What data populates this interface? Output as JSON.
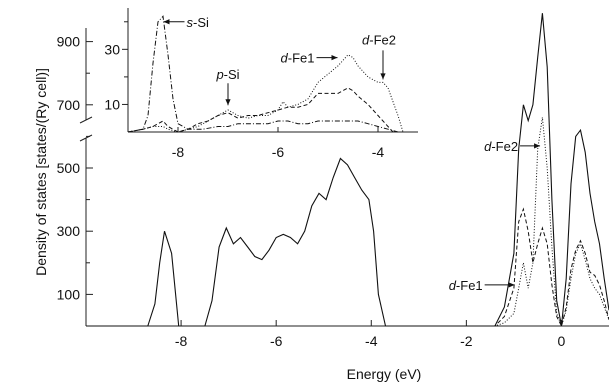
{
  "chart_data": {
    "type": "line",
    "title": "",
    "xlabel": "Energy (eV)",
    "ylabel": "Density of states [states/(Ry cell)]",
    "xlim": [
      -10,
      1
    ],
    "ylim": [
      0,
      1000
    ],
    "xticks": [
      -8,
      -6,
      -4,
      -2,
      0
    ],
    "yticks": [
      100,
      300,
      500,
      700,
      900
    ],
    "grid": false,
    "legend": "none",
    "series": [
      {
        "style": "solid",
        "x": [
          -10,
          -8.7,
          -8.55,
          -8.45,
          -8.35,
          -8.2,
          -8.05,
          -7.5,
          -7.35,
          -7.2,
          -7.05,
          -6.9,
          -6.75,
          -6.6,
          -6.45,
          -6.3,
          -6.15,
          -6.0,
          -5.85,
          -5.7,
          -5.55,
          -5.4,
          -5.25,
          -5.1,
          -4.95,
          -4.8,
          -4.65,
          -4.5,
          -4.35,
          -4.2,
          -4.05,
          -3.95,
          -3.85,
          -3.7,
          -2.0,
          -1.4,
          -1.2,
          -1.0,
          -0.9,
          -0.8,
          -0.7,
          -0.6,
          -0.5,
          -0.4,
          -0.3,
          -0.2,
          -0.1,
          0.0,
          0.1,
          0.2,
          0.3,
          0.4,
          0.5,
          0.6,
          0.7,
          0.8,
          0.9,
          1.0
        ],
        "y": [
          0,
          0,
          70,
          200,
          300,
          230,
          0,
          0,
          80,
          250,
          310,
          260,
          280,
          250,
          220,
          210,
          240,
          280,
          290,
          280,
          260,
          300,
          380,
          420,
          400,
          470,
          530,
          510,
          470,
          430,
          400,
          300,
          100,
          0,
          0,
          0,
          60,
          230,
          560,
          700,
          650,
          700,
          850,
          990,
          820,
          400,
          80,
          0,
          150,
          450,
          600,
          620,
          550,
          420,
          330,
          260,
          150,
          50
        ]
      },
      {
        "style": "dashed",
        "x": [
          -2.0,
          -1.4,
          -1.2,
          -1.0,
          -0.9,
          -0.8,
          -0.7,
          -0.6,
          -0.5,
          -0.4,
          -0.3,
          -0.2,
          -0.1,
          0.0,
          0.1,
          0.2,
          0.3,
          0.4,
          0.5,
          0.6,
          0.7,
          0.8,
          0.9,
          1.0
        ],
        "y": [
          0,
          0,
          30,
          120,
          330,
          370,
          300,
          200,
          260,
          310,
          260,
          130,
          30,
          0,
          60,
          180,
          240,
          270,
          230,
          170,
          160,
          130,
          80,
          20
        ]
      },
      {
        "style": "dotted",
        "x": [
          -2.0,
          -1.4,
          -1.2,
          -1.0,
          -0.9,
          -0.8,
          -0.7,
          -0.6,
          -0.5,
          -0.4,
          -0.3,
          -0.2,
          -0.1,
          0.0,
          0.1,
          0.2,
          0.3,
          0.4,
          0.5,
          0.6,
          0.7,
          0.8,
          0.9,
          1.0
        ],
        "y": [
          0,
          0,
          10,
          40,
          120,
          200,
          120,
          200,
          560,
          660,
          500,
          250,
          40,
          0,
          50,
          150,
          230,
          260,
          210,
          150,
          120,
          100,
          60,
          20
        ]
      }
    ],
    "annotations": [
      {
        "prefix": "d",
        "suffix": "-Fe2",
        "x": -0.45,
        "y": 570
      },
      {
        "prefix": "d",
        "suffix": "-Fe1",
        "x": -0.9,
        "y": 130
      }
    ],
    "inset": {
      "type": "line",
      "xlim": [
        -9,
        -3.2
      ],
      "ylim": [
        0,
        45
      ],
      "xticks": [
        -8,
        -6,
        -4
      ],
      "yticks": [
        10,
        30
      ],
      "series": [
        {
          "style": "dashdot",
          "x": [
            -9,
            -8.7,
            -8.6,
            -8.5,
            -8.4,
            -8.3,
            -8.2,
            -8.1,
            -8.0,
            -7.8,
            -7.5,
            -7.2,
            -7.0,
            -6.8,
            -6.6,
            -6.4,
            -6.2,
            -6.0,
            -5.8,
            -5.6,
            -5.4,
            -5.2,
            -5.0,
            -4.8,
            -4.6,
            -4.4,
            -4.2,
            -4.0,
            -3.8,
            -3.6
          ],
          "y": [
            0,
            1,
            6,
            25,
            40,
            42,
            28,
            12,
            3,
            1,
            1,
            2,
            2,
            3,
            3,
            3,
            3,
            4,
            4,
            3,
            3,
            4,
            4,
            4,
            4,
            4,
            3,
            2,
            1,
            0
          ]
        },
        {
          "style": "dashed",
          "x": [
            -9,
            -8.7,
            -8.5,
            -8.4,
            -8.3,
            -8.2,
            -8.0,
            -7.8,
            -7.6,
            -7.4,
            -7.2,
            -7.0,
            -6.9,
            -6.8,
            -6.6,
            -6.4,
            -6.2,
            -6.0,
            -5.8,
            -5.6,
            -5.4,
            -5.2,
            -5.0,
            -4.8,
            -4.6,
            -4.5,
            -4.4,
            -4.2,
            -4.0,
            -3.8,
            -3.7
          ],
          "y": [
            0,
            1,
            2,
            3,
            4,
            2,
            0,
            1,
            3,
            4,
            6,
            7,
            6,
            5,
            6,
            6,
            7,
            8,
            9,
            9,
            10,
            14,
            14,
            14,
            16,
            15,
            13,
            10,
            6,
            2,
            0
          ]
        },
        {
          "style": "dotted",
          "x": [
            -9,
            -8.7,
            -8.5,
            -8.4,
            -8.3,
            -8.2,
            -8.0,
            -7.8,
            -7.6,
            -7.4,
            -7.2,
            -7.0,
            -6.8,
            -6.6,
            -6.4,
            -6.2,
            -6.0,
            -5.9,
            -5.8,
            -5.6,
            -5.4,
            -5.2,
            -5.0,
            -4.8,
            -4.6,
            -4.5,
            -4.4,
            -4.2,
            -4.0,
            -3.9,
            -3.8,
            -3.6,
            -3.5
          ],
          "y": [
            0,
            1,
            2,
            2,
            2,
            1,
            0,
            1,
            2,
            4,
            6,
            8,
            6,
            5,
            6,
            6,
            8,
            11,
            9,
            10,
            12,
            18,
            21,
            24,
            28,
            27,
            24,
            20,
            18,
            18,
            16,
            6,
            0
          ]
        }
      ],
      "annotations": [
        {
          "prefix": "s",
          "suffix": "-Si",
          "x": -8.35,
          "y": 40
        },
        {
          "prefix": "p",
          "suffix": "-Si",
          "x": -7.0,
          "y": 9
        },
        {
          "prefix": "d",
          "suffix": "-Fe1",
          "x": -4.75,
          "y": 27
        },
        {
          "prefix": "d",
          "suffix": "-Fe2",
          "x": -3.9,
          "y": 18
        }
      ]
    }
  }
}
